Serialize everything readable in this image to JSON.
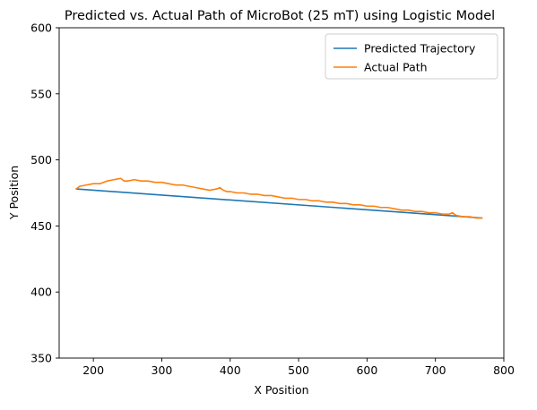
{
  "chart_data": {
    "type": "line",
    "title": "Predicted vs. Actual Path of MicroBot (25 mT) using Logistic Model",
    "xlabel": "X Position",
    "ylabel": "Y Position",
    "xlim": [
      150,
      800
    ],
    "ylim": [
      350,
      600
    ],
    "xticks": [
      "200",
      "300",
      "400",
      "500",
      "600",
      "700",
      "800"
    ],
    "yticks": [
      "350",
      "400",
      "450",
      "500",
      "550",
      "600"
    ],
    "legend_position": "top-right",
    "grid": false,
    "series": [
      {
        "name": "Predicted Trajectory",
        "color": "#1f77b4",
        "x": [
          175,
          768
        ],
        "y": [
          478,
          456
        ]
      },
      {
        "name": "Actual Path",
        "color": "#ff7f0e",
        "x": [
          175,
          180,
          190,
          200,
          210,
          220,
          230,
          240,
          245,
          250,
          260,
          270,
          280,
          290,
          300,
          310,
          320,
          330,
          340,
          350,
          360,
          370,
          380,
          385,
          390,
          395,
          400,
          410,
          420,
          430,
          440,
          450,
          460,
          470,
          480,
          490,
          500,
          510,
          520,
          530,
          540,
          550,
          560,
          570,
          580,
          590,
          600,
          610,
          620,
          630,
          640,
          650,
          660,
          670,
          680,
          690,
          700,
          710,
          720,
          725,
          730,
          740,
          750,
          760,
          768
        ],
        "y": [
          478,
          480,
          481,
          482,
          482,
          484,
          485,
          486,
          484,
          484,
          485,
          484,
          484,
          483,
          483,
          482,
          481,
          481,
          480,
          479,
          478,
          477,
          478,
          479,
          477,
          476,
          476,
          475,
          475,
          474,
          474,
          473,
          473,
          472,
          471,
          471,
          470,
          470,
          469,
          469,
          468,
          468,
          467,
          467,
          466,
          466,
          465,
          465,
          464,
          464,
          463,
          462,
          462,
          461,
          461,
          460,
          460,
          459,
          459,
          460,
          458,
          457,
          457,
          456,
          456
        ]
      }
    ]
  }
}
